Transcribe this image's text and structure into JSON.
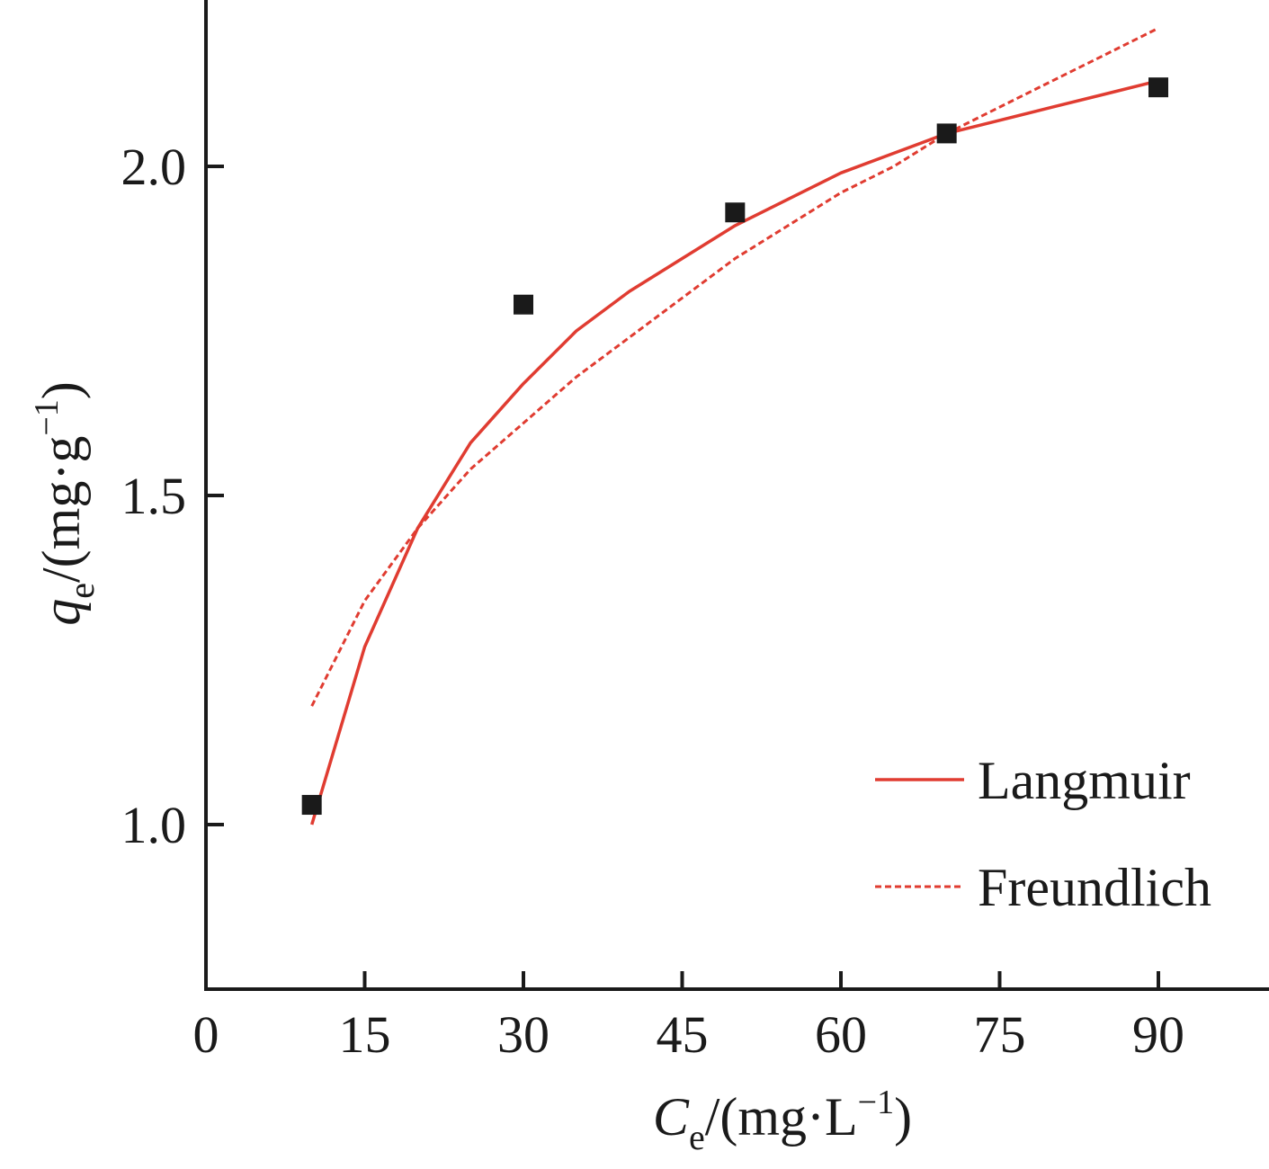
{
  "chart_data": {
    "type": "scatter",
    "xlim": [
      0,
      100
    ],
    "ylim": [
      0.75,
      2.25
    ],
    "x_ticks": [
      0,
      15,
      30,
      45,
      60,
      75,
      90
    ],
    "y_ticks": [
      1.0,
      1.5,
      2.0
    ],
    "x_tick_labels": [
      "0",
      "15",
      "30",
      "45",
      "60",
      "75",
      "90"
    ],
    "y_tick_labels": [
      "1.0",
      "1.5",
      "2.0"
    ],
    "xlabel": {
      "symbol": "C",
      "sub": "e",
      "unit_pre": "/(mg·L",
      "sup": "−1",
      "unit_post": ")"
    },
    "ylabel": {
      "symbol": "q",
      "sub": "e",
      "unit_pre": "/(mg·g",
      "sup": "−1",
      "unit_post": ")"
    },
    "grid": false,
    "legend_position": "bottom-right",
    "marker_color": "#1a1a1a",
    "line_color": "#e03c31",
    "series": [
      {
        "marker": "square",
        "x": [
          10,
          30,
          50,
          70,
          90
        ],
        "y": [
          1.03,
          1.79,
          1.93,
          2.05,
          2.12
        ]
      },
      {
        "name": "Langmuir",
        "style": "solid",
        "x": [
          10,
          15,
          20,
          25,
          30,
          35,
          40,
          45,
          50,
          55,
          60,
          65,
          70,
          75,
          80,
          85,
          90
        ],
        "y": [
          1.0,
          1.27,
          1.45,
          1.58,
          1.67,
          1.75,
          1.81,
          1.86,
          1.91,
          1.95,
          1.99,
          2.02,
          2.05,
          2.07,
          2.09,
          2.11,
          2.13
        ]
      },
      {
        "name": "Freundlich",
        "style": "dashed",
        "x": [
          10,
          15,
          20,
          25,
          30,
          35,
          40,
          45,
          50,
          55,
          60,
          65,
          70,
          75,
          80,
          85,
          90
        ],
        "y": [
          1.18,
          1.34,
          1.45,
          1.54,
          1.61,
          1.68,
          1.74,
          1.8,
          1.86,
          1.91,
          1.96,
          2.0,
          2.05,
          2.09,
          2.13,
          2.17,
          2.21
        ]
      }
    ]
  }
}
